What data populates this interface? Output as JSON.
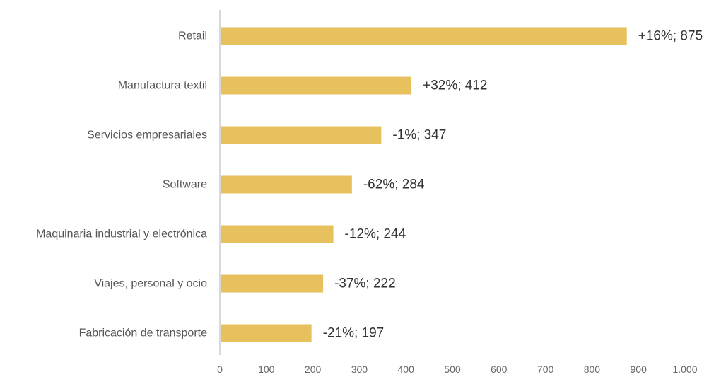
{
  "chart_data": {
    "type": "bar",
    "orientation": "horizontal",
    "categories": [
      "Retail",
      "Manufactura textil",
      "Servicios empresariales",
      "Software",
      "Maquinaria industrial y electrónica",
      "Viajes, personal y ocio",
      "Fabricación de transporte"
    ],
    "values": [
      875,
      412,
      347,
      284,
      244,
      222,
      197
    ],
    "data_labels": [
      "+16%;  875",
      "+32%;  412",
      "-1%;  347",
      "-62%;  284",
      "-12%;  244",
      "-37%;  222",
      "-21%;  197"
    ],
    "xlim": [
      0,
      1000
    ],
    "x_ticks": [
      0,
      100,
      200,
      300,
      400,
      500,
      600,
      700,
      800,
      900,
      1000
    ],
    "x_tick_labels": [
      "0",
      "100",
      "200",
      "300",
      "400",
      "500",
      "600",
      "700",
      "800",
      "900",
      "1.000"
    ],
    "grid": false,
    "colors": {
      "bar": "#E8C15F",
      "axis": "#D9D9D9"
    }
  }
}
